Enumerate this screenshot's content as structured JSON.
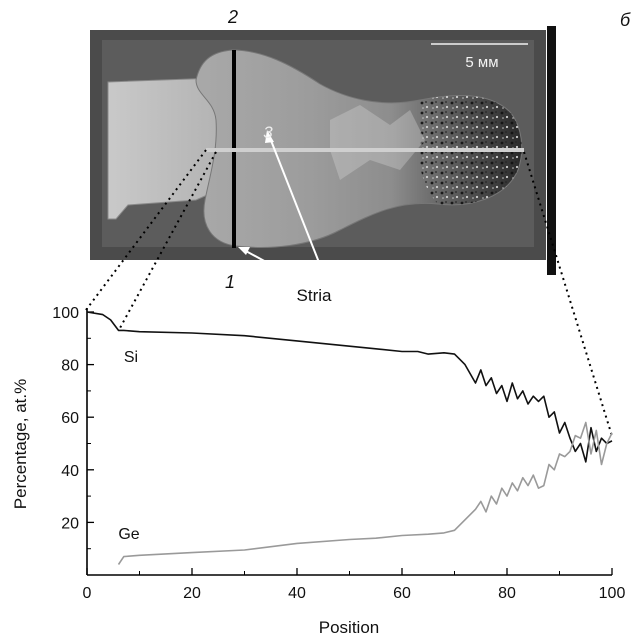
{
  "figure": {
    "panel_label": "б",
    "photo": {
      "scale_bar_label": "5 мм",
      "line_labels": [
        "1",
        "2",
        "3"
      ],
      "annotation": "Stria"
    }
  },
  "chart_data": {
    "type": "line",
    "xlabel": "Position",
    "ylabel": "Percentage, at.%",
    "xlim": [
      0,
      100
    ],
    "ylim": [
      0,
      100
    ],
    "x_ticks": [
      0,
      20,
      40,
      60,
      80,
      100
    ],
    "y_ticks": [
      20,
      40,
      60,
      80,
      100
    ],
    "grid": false,
    "series": [
      {
        "name": "Si",
        "color": "#111111",
        "x": [
          0,
          3,
          4.5,
          6,
          7,
          10,
          20,
          30,
          40,
          50,
          55,
          60,
          63,
          65,
          68,
          70,
          71,
          72,
          74,
          75,
          76,
          77,
          78,
          79,
          80,
          81,
          82,
          83,
          84,
          85,
          86,
          87,
          88,
          89,
          90,
          91,
          92,
          93,
          94,
          95,
          96,
          97,
          98,
          99,
          100
        ],
        "values": [
          100,
          99,
          97,
          93,
          93,
          92.5,
          92,
          91,
          89,
          87,
          86,
          85,
          85,
          84,
          84.5,
          84,
          82,
          80,
          73,
          78,
          72,
          75,
          69,
          72,
          66,
          73,
          67,
          70,
          65,
          68,
          66,
          68,
          60,
          62,
          54,
          58,
          52,
          47,
          50,
          43,
          56,
          47,
          52,
          50,
          51
        ]
      },
      {
        "name": "Ge",
        "color": "#9a9a9a",
        "x": [
          6,
          7,
          10,
          20,
          30,
          40,
          50,
          55,
          60,
          65,
          68,
          70,
          72,
          74,
          75,
          76,
          77,
          78,
          79,
          80,
          81,
          82,
          83,
          84,
          85,
          86,
          87,
          88,
          89,
          90,
          91,
          92,
          93,
          94,
          95,
          96,
          97,
          98,
          99,
          100
        ],
        "values": [
          4,
          7,
          7.5,
          8.5,
          9.5,
          12,
          13.5,
          14,
          15,
          15.5,
          16,
          17,
          21,
          25,
          28,
          24,
          30,
          27,
          33,
          30,
          35,
          32,
          37,
          34,
          38,
          33,
          34,
          42,
          40,
          46,
          45,
          47,
          53,
          52,
          58,
          46,
          55,
          42,
          50,
          54
        ]
      }
    ]
  }
}
